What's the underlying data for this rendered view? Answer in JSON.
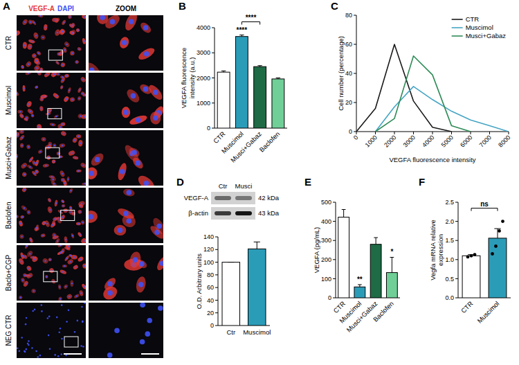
{
  "image_panel": {
    "panel": "A",
    "channels": [
      {
        "name": "VEGF-A",
        "color": "#e53935"
      },
      {
        "name": "DAPI",
        "color": "#3f51f5"
      }
    ],
    "zoom_header": "ZOOM",
    "rows": [
      "CTR",
      "Muscimol",
      "Musci+Gabaz",
      "Baclofen",
      "Baclo+CGP",
      "NEG CTR"
    ]
  },
  "blot": {
    "panel": "D",
    "lanes": [
      "Ctr",
      "Musci"
    ],
    "bands": [
      {
        "name": "VEGF-A",
        "size": "42 kDa"
      },
      {
        "name": "β-actin",
        "size": "43 kDa"
      }
    ]
  },
  "chart_data": [
    {
      "panel": "B",
      "type": "bar",
      "y_label": "VEGFA fluorescence intensity (a.u.)",
      "categories": [
        "CTR",
        "Muscimol",
        "Musci+Gabaz",
        "Baclofen"
      ],
      "values": [
        2230,
        3650,
        2450,
        1960
      ],
      "errors": [
        50,
        60,
        40,
        40
      ],
      "colors": [
        "#ffffff",
        "#2b9cb8",
        "#1e6b45",
        "#6fcf97"
      ],
      "ylim": [
        0,
        4000
      ],
      "yticks": [
        0,
        1000,
        2000,
        3000,
        4000
      ],
      "annotations": [
        {
          "text": "****",
          "category": 1
        },
        {
          "text": "****",
          "from": 1,
          "to": 2
        }
      ]
    },
    {
      "panel": "C",
      "type": "line",
      "x_label": "VEGFA fluorescence intensity",
      "y_label": "Cell number (percentage)",
      "x": [
        0,
        1000,
        2000,
        3000,
        4000,
        5000,
        6000,
        7000,
        8000
      ],
      "series": [
        {
          "name": "CTR",
          "color": "#1a1a1a",
          "values": [
            0,
            16,
            60,
            21,
            3,
            0,
            null,
            null,
            null
          ]
        },
        {
          "name": "Muscimol",
          "color": "#45a5c4",
          "values": [
            null,
            0,
            17,
            31,
            22,
            14,
            8,
            4,
            0
          ]
        },
        {
          "name": "Musci+Gabaz",
          "color": "#2e8b57",
          "values": [
            null,
            0,
            9,
            52,
            39,
            4,
            0,
            null,
            null
          ]
        }
      ],
      "xlim": [
        0,
        8000
      ],
      "xticks": [
        0,
        1000,
        2000,
        3000,
        4000,
        5000,
        6000,
        7000,
        8000
      ],
      "ylim": [
        0,
        80
      ],
      "yticks": [
        0,
        20,
        40,
        60,
        80
      ],
      "legend": "top-right"
    },
    {
      "type": "bar",
      "y_label": "O.D. Arbitrary units",
      "categories": [
        "Ctr",
        "Muscimol"
      ],
      "values": [
        100,
        121
      ],
      "errors": [
        0,
        11
      ],
      "colors": [
        "#ffffff",
        "#2b9cb8"
      ],
      "ylim": [
        0,
        140
      ],
      "yticks": [
        0,
        20,
        40,
        60,
        80,
        100,
        120,
        140
      ]
    },
    {
      "panel": "E",
      "type": "bar",
      "y_label": "VEGFA (pg/mL)",
      "categories": [
        "CTR",
        "Muscimol",
        "Musci+Gabaz",
        "Baclofen"
      ],
      "values": [
        422,
        57,
        280,
        132
      ],
      "errors": [
        40,
        12,
        35,
        80
      ],
      "colors": [
        "#ffffff",
        "#2b9cb8",
        "#1e6b45",
        "#6fcf97"
      ],
      "ylim": [
        0,
        500
      ],
      "yticks": [
        0,
        100,
        200,
        300,
        400,
        500
      ],
      "annotations": [
        {
          "text": "**",
          "category": 1
        },
        {
          "text": "*",
          "category": 3
        }
      ]
    },
    {
      "panel": "F",
      "type": "bar",
      "y_label": "Vegfa mRNA relative expression",
      "categories": [
        "CTR",
        "Muscimol"
      ],
      "values": [
        1.1,
        1.56
      ],
      "errors": [
        0.03,
        0.25
      ],
      "points": [
        [
          1.07,
          1.1,
          1.13
        ],
        [
          1.15,
          1.35,
          1.75,
          2.0
        ]
      ],
      "colors": [
        "#ffffff",
        "#2b9cb8"
      ],
      "ylim": [
        0,
        2.5
      ],
      "yticks": [
        {
          "value": 0,
          "label": "0.0"
        },
        {
          "value": 0.5,
          "label": "0.5"
        },
        {
          "value": 1,
          "label": "1.0"
        },
        {
          "value": 1.5,
          "label": "1.5"
        },
        {
          "value": 2,
          "label": "2.0"
        },
        {
          "value": 2.5,
          "label": "2.5"
        }
      ],
      "annotations": [
        {
          "text": "ns",
          "from": 0,
          "to": 1
        }
      ]
    }
  ]
}
